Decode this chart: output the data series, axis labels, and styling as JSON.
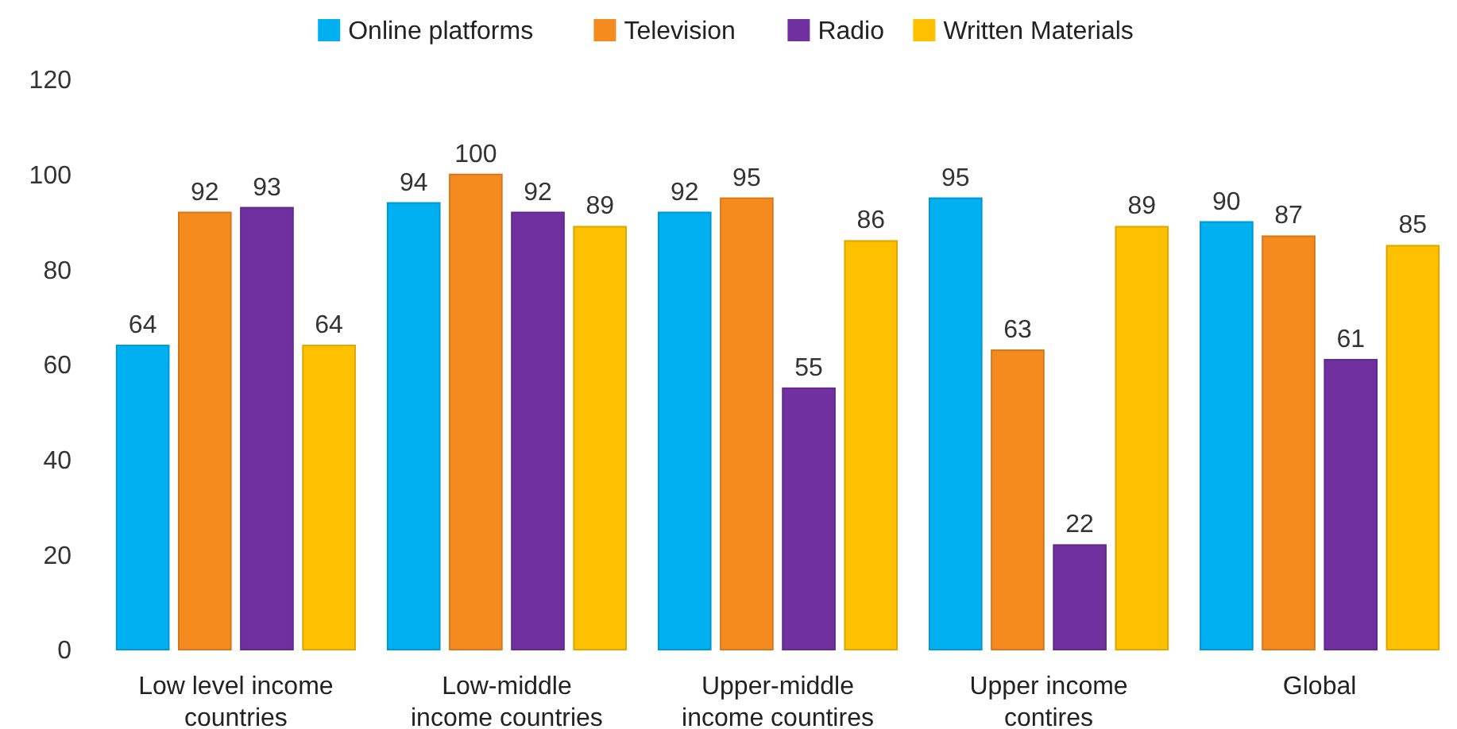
{
  "chart_data": {
    "type": "bar",
    "categories": [
      "Low level income countries",
      "Low-middle income countries",
      "Upper-middle income countires",
      "Upper income contires",
      "Global"
    ],
    "series": [
      {
        "name": "Online platforms",
        "color": "#00b0f0",
        "values": [
          64,
          94,
          92,
          95,
          90
        ]
      },
      {
        "name": "Television",
        "color": "#f58b1f",
        "values": [
          92,
          100,
          95,
          63,
          87
        ]
      },
      {
        "name": "Radio",
        "color": "#7030a0",
        "values": [
          93,
          92,
          55,
          22,
          61
        ]
      },
      {
        "name": "Written Materials",
        "color": "#ffc000",
        "values": [
          64,
          89,
          86,
          89,
          85
        ]
      }
    ],
    "ylim": [
      0,
      120
    ],
    "yticks": [
      0,
      20,
      40,
      60,
      80,
      100,
      120
    ],
    "data_labels": true,
    "legend": "top",
    "grid": false
  }
}
